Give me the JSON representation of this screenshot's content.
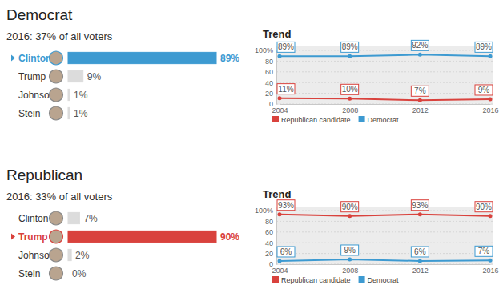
{
  "chart_data": [
    {
      "type": "bar",
      "orientation": "horizontal",
      "title": "Democrat",
      "subtitle": "2016: 37% of all voters",
      "categories": [
        "Clinton",
        "Trump",
        "Johnson",
        "Stein"
      ],
      "values": [
        89,
        9,
        1,
        1
      ],
      "value_labels": [
        "89%",
        "9%",
        "1%",
        "1%"
      ],
      "colors": [
        "#3d9ad1",
        "#dcdcdc",
        "#dcdcdc",
        "#dcdcdc"
      ],
      "data_labels": true
    },
    {
      "type": "line",
      "title": "Trend",
      "x": [
        2004,
        2008,
        2012,
        2016
      ],
      "xlim": [
        2004,
        2016
      ],
      "xticks": [
        2004,
        2008,
        2012,
        2016
      ],
      "ylim": [
        0,
        100
      ],
      "yticks": [
        0,
        20,
        40,
        60,
        80,
        {
          "value": 100,
          "label": "100%"
        }
      ],
      "grid": true,
      "legend": "bottom",
      "data_labels": true,
      "series": [
        {
          "name": "Republican candidate",
          "color": "#d9423d",
          "values": [
            11,
            10,
            7,
            9
          ],
          "value_labels": [
            "11%",
            "10%",
            "7%",
            "9%"
          ]
        },
        {
          "name": "Democrat",
          "color": "#3d9ad1",
          "values": [
            89,
            89,
            92,
            89
          ],
          "value_labels": [
            "89%",
            "89%",
            "92%",
            "89%"
          ]
        }
      ]
    },
    {
      "type": "bar",
      "orientation": "horizontal",
      "title": "Republican",
      "subtitle": "2016: 33% of all voters",
      "categories": [
        "Clinton",
        "Trump",
        "Johnson",
        "Stein"
      ],
      "values": [
        7,
        90,
        2,
        0
      ],
      "value_labels": [
        "7%",
        "90%",
        "2%",
        "0%"
      ],
      "colors": [
        "#dcdcdc",
        "#d9423d",
        "#dcdcdc",
        "#dcdcdc"
      ],
      "data_labels": true
    },
    {
      "type": "line",
      "title": "Trend",
      "x": [
        2004,
        2008,
        2012,
        2016
      ],
      "xlim": [
        2004,
        2016
      ],
      "xticks": [
        2004,
        2008,
        2012,
        2016
      ],
      "ylim": [
        0,
        100
      ],
      "yticks": [
        0,
        20,
        40,
        60,
        80,
        {
          "value": 100,
          "label": "100%"
        }
      ],
      "grid": true,
      "legend": "bottom",
      "data_labels": true,
      "series": [
        {
          "name": "Republican candidate",
          "color": "#d9423d",
          "values": [
            93,
            90,
            93,
            90
          ],
          "value_labels": [
            "93%",
            "90%",
            "93%",
            "90%"
          ]
        },
        {
          "name": "Democrat",
          "color": "#3d9ad1",
          "values": [
            6,
            9,
            6,
            7
          ],
          "value_labels": [
            "6%",
            "9%",
            "6%",
            "7%"
          ]
        }
      ]
    }
  ]
}
